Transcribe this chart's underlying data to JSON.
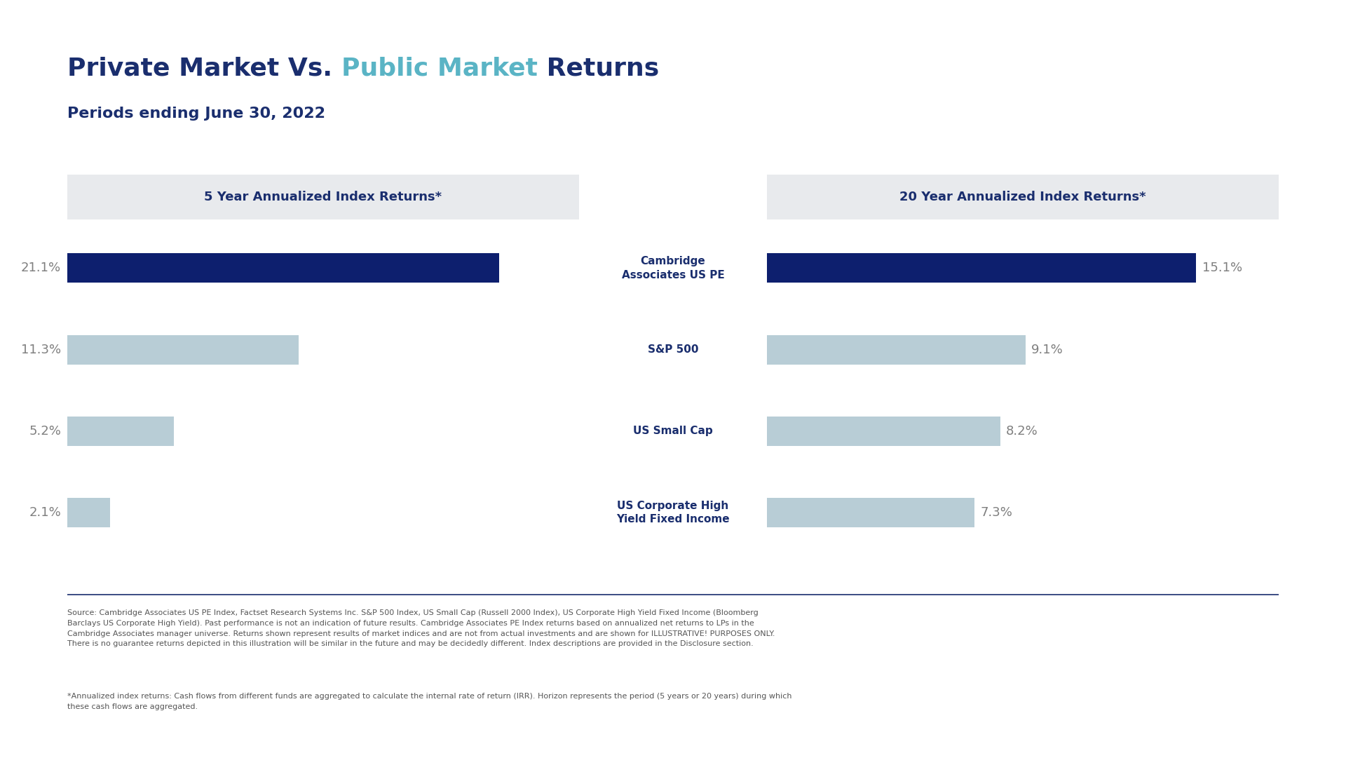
{
  "title_part1": "Private Market Vs. ",
  "title_part2": "Public Market",
  "title_part3": " Returns",
  "subtitle": "Periods ending June 30, 2022",
  "title_color": "#1a2e6e",
  "title_highlight_color": "#5ab4c5",
  "subtitle_color": "#1a2e6e",
  "panel_left_title": "5 Year Annualized Index Returns*",
  "panel_right_title": "20 Year Annualized Index Returns*",
  "panel_title_color": "#1a2e6e",
  "panel_bg_color": "#e8eaed",
  "categories": [
    "Cambridge\nAssociates US PE",
    "S&P 500",
    "US Small Cap",
    "US Corporate High\nYield Fixed Income"
  ],
  "values_5yr": [
    21.1,
    11.3,
    5.2,
    2.1
  ],
  "values_20yr": [
    15.1,
    9.1,
    8.2,
    7.3
  ],
  "bar_color_private": "#0d1f6e",
  "bar_color_public": "#b8cdd6",
  "label_color_val": "#7f7f7f",
  "label_color_center": "#1a2e6e",
  "footnote_source": "Source: Cambridge Associates US PE Index, Factset Research Systems Inc. S&P 500 Index, US Small Cap (Russell 2000 Index), US Corporate High Yield Fixed Income (Bloomberg\nBarclays US Corporate High Yield). Past performance is not an indication of future results. Cambridge Associates PE Index returns based on annualized net returns to LPs in the\nCambridge Associates manager universe. Returns shown represent results of market indices and are not from actual investments and are shown for ILLUSTRATIVE! PURPOSES ONLY.\nThere is no guarantee returns depicted in this illustration will be similar in the future and may be decidedly different. Index descriptions are provided in the Disclosure section.",
  "footnote_star": "*Annualized index returns: Cash flows from different funds are aggregated to calculate the internal rate of return (IRR). Horizon represents the period (5 years or 20 years) during which\nthese cash flows are aggregated.",
  "bg_color": "#ffffff",
  "divider_color": "#1a2e6e",
  "xlim_5yr": 25.0,
  "xlim_20yr": 18.0
}
